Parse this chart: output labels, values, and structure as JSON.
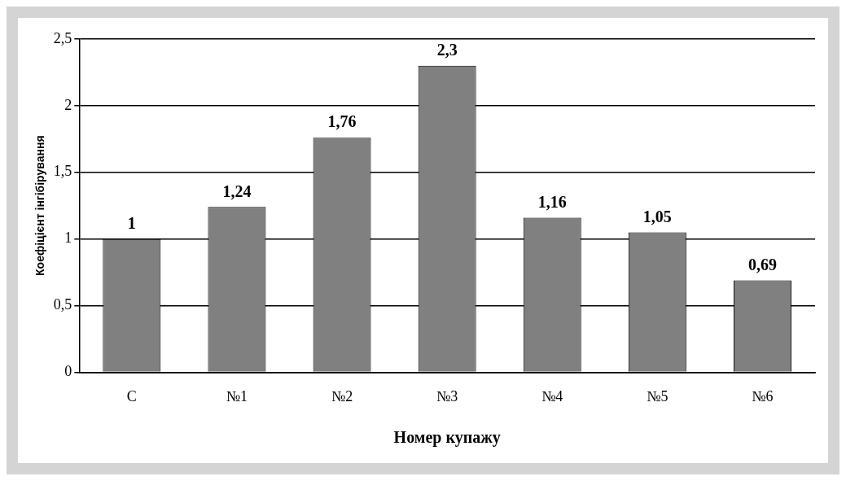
{
  "chart_data": {
    "type": "bar",
    "xlabel": "Номер купажу",
    "ylabel": "Коефіцієнт інгібірування",
    "categories": [
      "С",
      "№1",
      "№2",
      "№3",
      "№4",
      "№5",
      "№6"
    ],
    "values": [
      1,
      1.24,
      1.76,
      2.3,
      1.16,
      1.05,
      0.69
    ],
    "value_labels": [
      "1",
      "1,24",
      "1,76",
      "2,3",
      "1,16",
      "1,05",
      "0,69"
    ],
    "color": "#808080",
    "ylim": [
      0,
      2.5
    ],
    "yticks": [
      0,
      {
        "value": 0.5,
        "label": "0,5"
      },
      1,
      {
        "value": 1.5,
        "label": "1,5"
      },
      2,
      {
        "value": 2.5,
        "label": "2,5"
      }
    ],
    "grid": "y"
  }
}
